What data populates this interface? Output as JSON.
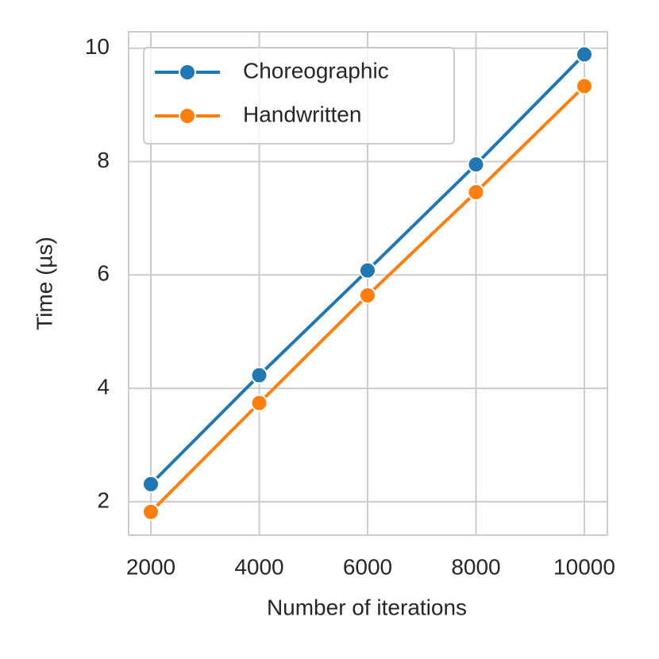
{
  "chart_data": {
    "type": "line",
    "xlabel": "Number of iterations",
    "ylabel": "Time (µs)",
    "x": [
      2000,
      4000,
      6000,
      8000,
      10000
    ],
    "series": [
      {
        "name": "Choreographic",
        "color": "#1f77b4",
        "values": [
          2.31,
          4.23,
          6.08,
          7.95,
          9.89
        ]
      },
      {
        "name": "Handwritten",
        "color": "#ff7f0e",
        "values": [
          1.82,
          3.74,
          5.64,
          7.46,
          9.33
        ]
      }
    ],
    "xlim": [
      1590,
      10425
    ],
    "xticks": [
      2000,
      4000,
      6000,
      8000,
      10000
    ],
    "ylim": [
      1.41,
      10.29
    ],
    "yticks": [
      2,
      4,
      6,
      8,
      10
    ],
    "grid": true,
    "legend": "upper left"
  }
}
